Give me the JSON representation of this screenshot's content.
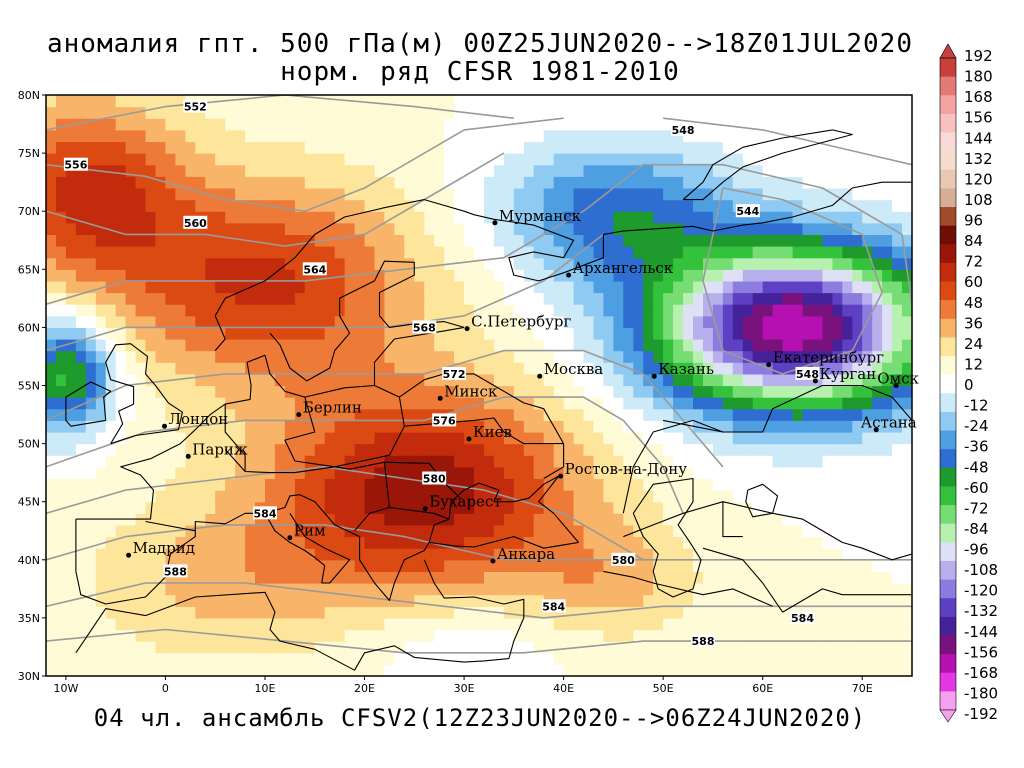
{
  "title": {
    "line1": "аномалия гпт. 500 гПа(м) 00Z25JUN2020-->18Z01JUL2020",
    "line2": "норм. ряд CFSR 1981-2010"
  },
  "footer": "04 чл. ансамбль CFSV2(12Z23JUN2020-->06Z24JUN2020)",
  "map": {
    "lon_range": [
      -12,
      75
    ],
    "lat_range": [
      30,
      80
    ],
    "lat_ticks": [
      {
        "value": 30,
        "label": "30N"
      },
      {
        "value": 35,
        "label": "35N"
      },
      {
        "value": 40,
        "label": "40N"
      },
      {
        "value": 45,
        "label": "45N"
      },
      {
        "value": 50,
        "label": "50N"
      },
      {
        "value": 55,
        "label": "55N"
      },
      {
        "value": 60,
        "label": "60N"
      },
      {
        "value": 65,
        "label": "65N"
      },
      {
        "value": 70,
        "label": "70N"
      },
      {
        "value": 75,
        "label": "75N"
      },
      {
        "value": 80,
        "label": "80N"
      }
    ],
    "lon_ticks": [
      {
        "value": -10,
        "label": "10W"
      },
      {
        "value": 0,
        "label": "0"
      },
      {
        "value": 10,
        "label": "10E"
      },
      {
        "value": 20,
        "label": "20E"
      },
      {
        "value": 30,
        "label": "30E"
      },
      {
        "value": 40,
        "label": "40E"
      },
      {
        "value": 50,
        "label": "50E"
      },
      {
        "value": 60,
        "label": "60E"
      },
      {
        "value": 70,
        "label": "70E"
      }
    ],
    "anomaly_centers": [
      {
        "lon": 26,
        "lat": 46,
        "amp": 80,
        "sx": 16,
        "sy": 9
      },
      {
        "lon": 10,
        "lat": 64,
        "amp": 62,
        "sx": 16,
        "sy": 9
      },
      {
        "lon": -8,
        "lat": 72,
        "amp": 60,
        "sx": 10,
        "sy": 8
      },
      {
        "lon": 63,
        "lat": 60,
        "amp": -190,
        "sx": 14,
        "sy": 7
      },
      {
        "lon": 45,
        "lat": 70,
        "amp": -55,
        "sx": 12,
        "sy": 6
      },
      {
        "lon": -10,
        "lat": 56,
        "amp": -80,
        "sx": 5,
        "sy": 5
      },
      {
        "lon": 5,
        "lat": 38,
        "amp": 25,
        "sx": 14,
        "sy": 7
      },
      {
        "lon": 45,
        "lat": 38,
        "amp": 25,
        "sx": 9,
        "sy": 5
      },
      {
        "lon": 30,
        "lat": 33,
        "amp": -15,
        "sx": 10,
        "sy": 4
      }
    ],
    "cities": [
      {
        "name": "Мурманск",
        "lon": 33.1,
        "lat": 69.0
      },
      {
        "name": "Архангельск",
        "lon": 40.5,
        "lat": 64.5
      },
      {
        "name": "С.Петербург",
        "lon": 30.3,
        "lat": 59.9
      },
      {
        "name": "Москва",
        "lon": 37.6,
        "lat": 55.8
      },
      {
        "name": "Казань",
        "lon": 49.1,
        "lat": 55.8
      },
      {
        "name": "Екатеринбург",
        "lon": 60.6,
        "lat": 56.8
      },
      {
        "name": "Курган",
        "lon": 65.3,
        "lat": 55.4
      },
      {
        "name": "Омск",
        "lon": 73.4,
        "lat": 55.0
      },
      {
        "name": "Астана",
        "lon": 71.4,
        "lat": 51.2
      },
      {
        "name": "Минск",
        "lon": 27.6,
        "lat": 53.9
      },
      {
        "name": "Киев",
        "lon": 30.5,
        "lat": 50.4
      },
      {
        "name": "Берлин",
        "lon": 13.4,
        "lat": 52.5
      },
      {
        "name": "Лондон",
        "lon": -0.1,
        "lat": 51.5
      },
      {
        "name": "Париж",
        "lon": 2.3,
        "lat": 48.9
      },
      {
        "name": "Ростов-на-Дону",
        "lon": 39.7,
        "lat": 47.2
      },
      {
        "name": "Бухарест",
        "lon": 26.1,
        "lat": 44.4
      },
      {
        "name": "Рим",
        "lon": 12.5,
        "lat": 41.9
      },
      {
        "name": "Мадрид",
        "lon": -3.7,
        "lat": 40.4
      },
      {
        "name": "Анкара",
        "lon": 32.9,
        "lat": 39.9
      }
    ],
    "contour_labels": [
      {
        "text": "552",
        "lon": 3,
        "lat": 79
      },
      {
        "text": "556",
        "lon": -9,
        "lat": 74
      },
      {
        "text": "560",
        "lon": 3,
        "lat": 69
      },
      {
        "text": "564",
        "lon": 15,
        "lat": 65
      },
      {
        "text": "568",
        "lon": 26,
        "lat": 60
      },
      {
        "text": "572",
        "lon": 29,
        "lat": 56
      },
      {
        "text": "576",
        "lon": 28,
        "lat": 52
      },
      {
        "text": "580",
        "lon": 27,
        "lat": 47
      },
      {
        "text": "584",
        "lon": 10,
        "lat": 44
      },
      {
        "text": "588",
        "lon": 1,
        "lat": 39
      },
      {
        "text": "548",
        "lon": 52,
        "lat": 77
      },
      {
        "text": "544",
        "lon": 58.5,
        "lat": 70
      },
      {
        "text": "548",
        "lon": 64.5,
        "lat": 56
      },
      {
        "text": "580",
        "lon": 46,
        "lat": 40
      },
      {
        "text": "584",
        "lon": 39,
        "lat": 36
      },
      {
        "text": "584",
        "lon": 64,
        "lat": 35
      },
      {
        "text": "588",
        "lon": 54,
        "lat": 33
      }
    ]
  },
  "colorbar": {
    "ticks": [
      "192",
      "180",
      "168",
      "156",
      "144",
      "132",
      "120",
      "108",
      "96",
      "84",
      "72",
      "60",
      "48",
      "36",
      "24",
      "12",
      "0",
      "-12",
      "-24",
      "-36",
      "-48",
      "-60",
      "-72",
      "-84",
      "-96",
      "-108",
      "-120",
      "-132",
      "-144",
      "-156",
      "-168",
      "-180",
      "-192"
    ],
    "colors": [
      "#c8403c",
      "#e47a76",
      "#f2a3a0",
      "#f7c1bf",
      "#fadad8",
      "#f5dccc",
      "#e8c8b4",
      "#d6ae98",
      "#a24a2c",
      "#6e0e06",
      "#9a1608",
      "#c22c0c",
      "#dc4a14",
      "#ee7a38",
      "#f8b468",
      "#fde69c",
      "#fffbd6",
      "#ffffff",
      "#cdeaf8",
      "#8fcaf2",
      "#4e9ee2",
      "#2e6ed0",
      "#1f9a2c",
      "#34c23c",
      "#76dc74",
      "#b8f0b0",
      "#dee0f6",
      "#b8b0ec",
      "#8c7ce0",
      "#5e40c4",
      "#46229a",
      "#7a127e",
      "#b610b2",
      "#e436e2",
      "#f3a2f0"
    ],
    "top_arrow_color": "#c8403c",
    "bottom_arrow_color": "#f3a2f0"
  }
}
